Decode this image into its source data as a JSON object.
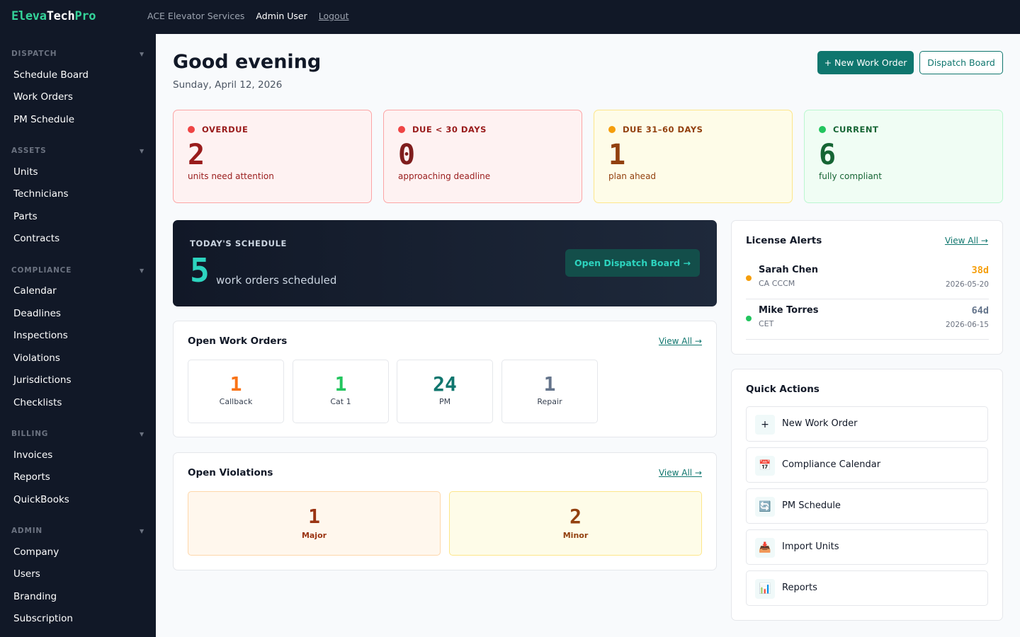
{
  "brand": {
    "part1": "Eleva",
    "part2": "Tech",
    "part3": "Pro"
  },
  "topbar": {
    "org": "ACE Elevator Services",
    "user": "Admin User",
    "logout": "Logout"
  },
  "sidebar": {
    "sections": [
      {
        "title": "DISPATCH",
        "items": [
          "Schedule Board",
          "Work Orders",
          "PM Schedule"
        ]
      },
      {
        "title": "ASSETS",
        "items": [
          "Units",
          "Technicians",
          "Parts",
          "Contracts"
        ]
      },
      {
        "title": "COMPLIANCE",
        "items": [
          "Calendar",
          "Deadlines",
          "Inspections",
          "Violations",
          "Jurisdictions",
          "Checklists"
        ]
      },
      {
        "title": "BILLING",
        "items": [
          "Invoices",
          "Reports",
          "QuickBooks"
        ]
      },
      {
        "title": "ADMIN",
        "items": [
          "Company",
          "Users",
          "Branding",
          "Subscription"
        ]
      }
    ]
  },
  "header": {
    "greeting": "Good evening",
    "date": "Sunday, April 12, 2026",
    "new_wo": "+ New Work Order",
    "dispatch": "Dispatch Board"
  },
  "stats": [
    {
      "label": "OVERDUE",
      "value": "2",
      "sub": "units need attention"
    },
    {
      "label": "DUE < 30 DAYS",
      "value": "0",
      "sub": "approaching deadline"
    },
    {
      "label": "DUE 31–60 DAYS",
      "value": "1",
      "sub": "plan ahead"
    },
    {
      "label": "CURRENT",
      "value": "6",
      "sub": "fully compliant"
    }
  ],
  "schedule": {
    "title": "TODAY'S SCHEDULE",
    "count": "5",
    "desc": "work orders scheduled",
    "button": "Open Dispatch Board →"
  },
  "work_orders": {
    "title": "Open Work Orders",
    "view_all": "View All →",
    "items": [
      {
        "value": "1",
        "label": "Callback",
        "color": "#f97316"
      },
      {
        "value": "1",
        "label": "Cat 1",
        "color": "#22c55e"
      },
      {
        "value": "24",
        "label": "PM",
        "color": "#0f766e"
      },
      {
        "value": "1",
        "label": "Repair",
        "color": "#64748b"
      }
    ]
  },
  "violations": {
    "title": "Open Violations",
    "view_all": "View All →",
    "items": [
      {
        "value": "1",
        "label": "Major"
      },
      {
        "value": "2",
        "label": "Minor"
      }
    ]
  },
  "licenses": {
    "title": "License Alerts",
    "view_all": "View All →",
    "items": [
      {
        "name": "Sarah Chen",
        "cred": "CA CCCM",
        "days": "38d",
        "date": "2026-05-20",
        "color": "#f59e0b"
      },
      {
        "name": "Mike Torres",
        "cred": "CET",
        "days": "64d",
        "date": "2026-06-15",
        "color": "#22c55e"
      }
    ]
  },
  "quick_actions": {
    "title": "Quick Actions",
    "items": [
      {
        "label": "New Work Order",
        "icon": "+"
      },
      {
        "label": "Compliance Calendar",
        "icon": "📅"
      },
      {
        "label": "PM Schedule",
        "icon": "🔄"
      },
      {
        "label": "Import Units",
        "icon": "📥"
      },
      {
        "label": "Reports",
        "icon": "📊"
      }
    ]
  }
}
